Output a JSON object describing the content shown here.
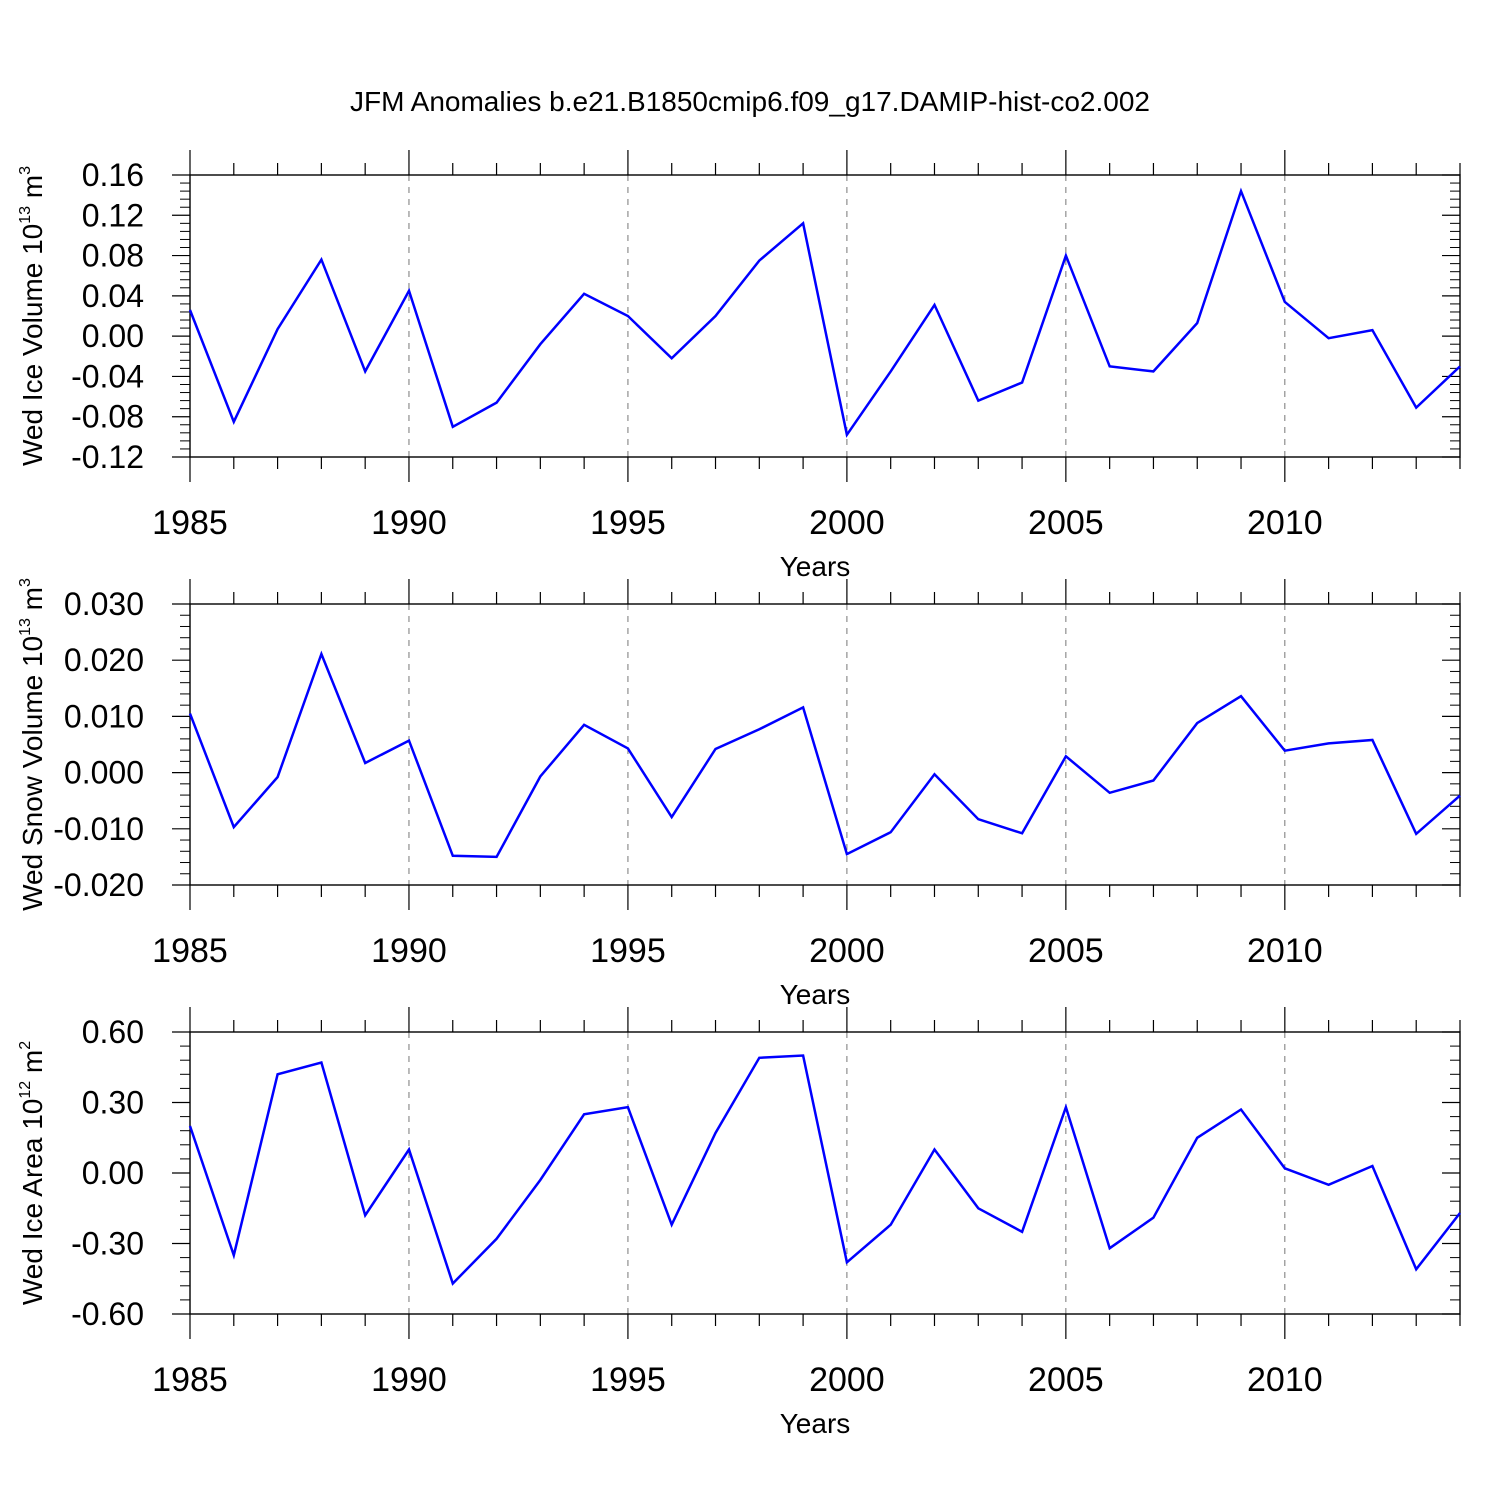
{
  "title": "JFM Anomalies b.e21.B1850cmip6.f09_g17.DAMIP-hist-co2.002",
  "colors": {
    "line": "#0000ff",
    "axis": "#000000",
    "grid": "#777777",
    "background": "#ffffff"
  },
  "chart_data": [
    {
      "type": "line",
      "xlabel": "Years",
      "ylabel": {
        "prefix": "Wed Ice Volume 10",
        "exponent": "13",
        "unit": " m",
        "unit_exponent": "3"
      },
      "xlim": [
        1985,
        2014
      ],
      "ylim": [
        -0.12,
        0.16
      ],
      "xticks": [
        1985,
        1990,
        1995,
        2000,
        2005,
        2010
      ],
      "xticklabels": [
        "1985",
        "1990",
        "1995",
        "2000",
        "2005",
        "2010"
      ],
      "yticks": [
        -0.12,
        -0.08,
        -0.04,
        0.0,
        0.04,
        0.08,
        0.12,
        0.16
      ],
      "yticklabels": [
        "-0.12",
        "-0.08",
        "-0.04",
        "0.00",
        "0.04",
        "0.08",
        "0.12",
        "0.16"
      ],
      "grid": "vertical dashed at major x ticks",
      "x": [
        1985,
        1986,
        1987,
        1988,
        1989,
        1990,
        1991,
        1992,
        1993,
        1994,
        1995,
        1996,
        1997,
        1998,
        1999,
        2000,
        2001,
        2002,
        2003,
        2004,
        2005,
        2006,
        2007,
        2008,
        2009,
        2010,
        2011,
        2012,
        2013,
        2014
      ],
      "series": [
        {
          "values": [
            0.026,
            -0.085,
            0.007,
            0.076,
            -0.035,
            0.045,
            -0.09,
            -0.066,
            -0.008,
            0.042,
            0.02,
            -0.022,
            0.02,
            0.075,
            0.112,
            -0.098,
            -0.035,
            0.031,
            -0.064,
            -0.046,
            0.08,
            -0.03,
            -0.035,
            0.013,
            0.144,
            0.034,
            -0.002,
            0.006,
            -0.071,
            -0.03
          ]
        }
      ]
    },
    {
      "type": "line",
      "xlabel": "Years",
      "ylabel": {
        "prefix": "Wed Snow Volume 10",
        "exponent": "13",
        "unit": " m",
        "unit_exponent": "3"
      },
      "xlim": [
        1985,
        2014
      ],
      "ylim": [
        -0.02,
        0.03
      ],
      "xticks": [
        1985,
        1990,
        1995,
        2000,
        2005,
        2010
      ],
      "xticklabels": [
        "1985",
        "1990",
        "1995",
        "2000",
        "2005",
        "2010"
      ],
      "yticks": [
        -0.02,
        -0.01,
        0.0,
        0.01,
        0.02,
        0.03
      ],
      "yticklabels": [
        "-0.020",
        "-0.010",
        "0.000",
        "0.010",
        "0.020",
        "0.030"
      ],
      "grid": "vertical dashed at major x ticks",
      "x": [
        1985,
        1986,
        1987,
        1988,
        1989,
        1990,
        1991,
        1992,
        1993,
        1994,
        1995,
        1996,
        1997,
        1998,
        1999,
        2000,
        2001,
        2002,
        2003,
        2004,
        2005,
        2006,
        2007,
        2008,
        2009,
        2010,
        2011,
        2012,
        2013,
        2014
      ],
      "series": [
        {
          "values": [
            0.0105,
            -0.0097,
            -0.0008,
            0.0211,
            0.0017,
            0.0057,
            -0.0148,
            -0.015,
            -0.0007,
            0.0085,
            0.0043,
            -0.0079,
            0.0042,
            0.0077,
            0.0116,
            -0.0145,
            -0.0106,
            -0.0003,
            -0.0083,
            -0.0108,
            0.0029,
            -0.0036,
            -0.0014,
            0.0088,
            0.0136,
            0.0039,
            0.0052,
            0.0058,
            -0.0109,
            -0.0041
          ]
        }
      ]
    },
    {
      "type": "line",
      "xlabel": "Years",
      "ylabel": {
        "prefix": "Wed Ice Area 10",
        "exponent": "12",
        "unit": " m",
        "unit_exponent": "2"
      },
      "xlim": [
        1985,
        2014
      ],
      "ylim": [
        -0.6,
        0.6
      ],
      "xticks": [
        1985,
        1990,
        1995,
        2000,
        2005,
        2010
      ],
      "xticklabels": [
        "1985",
        "1990",
        "1995",
        "2000",
        "2005",
        "2010"
      ],
      "yticks": [
        -0.6,
        -0.3,
        0.0,
        0.3,
        0.6
      ],
      "yticklabels": [
        "-0.60",
        "-0.30",
        "0.00",
        "0.30",
        "0.60"
      ],
      "grid": "vertical dashed at major x ticks",
      "x": [
        1985,
        1986,
        1987,
        1988,
        1989,
        1990,
        1991,
        1992,
        1993,
        1994,
        1995,
        1996,
        1997,
        1998,
        1999,
        2000,
        2001,
        2002,
        2003,
        2004,
        2005,
        2006,
        2007,
        2008,
        2009,
        2010,
        2011,
        2012,
        2013,
        2014
      ],
      "series": [
        {
          "values": [
            0.2,
            -0.35,
            0.42,
            0.47,
            -0.18,
            0.1,
            -0.47,
            -0.28,
            -0.03,
            0.25,
            0.28,
            -0.22,
            0.17,
            0.49,
            0.5,
            -0.38,
            -0.22,
            0.1,
            -0.15,
            -0.25,
            0.28,
            -0.32,
            -0.19,
            0.15,
            0.27,
            0.02,
            -0.05,
            0.03,
            -0.41,
            -0.17
          ]
        }
      ]
    }
  ]
}
